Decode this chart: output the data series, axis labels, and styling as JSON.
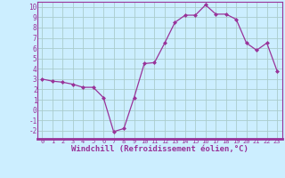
{
  "x": [
    0,
    1,
    2,
    3,
    4,
    5,
    6,
    7,
    8,
    9,
    10,
    11,
    12,
    13,
    14,
    15,
    16,
    17,
    18,
    19,
    20,
    21,
    22,
    23
  ],
  "y": [
    3.0,
    2.8,
    2.7,
    2.5,
    2.2,
    2.2,
    1.2,
    -2.1,
    -1.8,
    1.2,
    4.5,
    4.6,
    6.5,
    8.5,
    9.2,
    9.2,
    10.2,
    9.3,
    9.3,
    8.8,
    6.5,
    5.8,
    6.5,
    3.8
  ],
  "line_color": "#993399",
  "marker": "D",
  "markersize": 2.0,
  "linewidth": 0.9,
  "xlabel": "Windchill (Refroidissement éolien,°C)",
  "xlabel_fontsize": 6.5,
  "bg_color": "#cceeff",
  "grid_color": "#aacccc",
  "tick_color": "#993399",
  "label_color": "#993399",
  "ylim": [
    -2.8,
    10.5
  ],
  "yticks": [
    -2,
    -1,
    0,
    1,
    2,
    3,
    4,
    5,
    6,
    7,
    8,
    9,
    10
  ],
  "xticks": [
    0,
    1,
    2,
    3,
    4,
    5,
    6,
    7,
    8,
    9,
    10,
    11,
    12,
    13,
    14,
    15,
    16,
    17,
    18,
    19,
    20,
    21,
    22,
    23
  ],
  "spine_color": "#993399",
  "bottom_border_color": "#993399"
}
